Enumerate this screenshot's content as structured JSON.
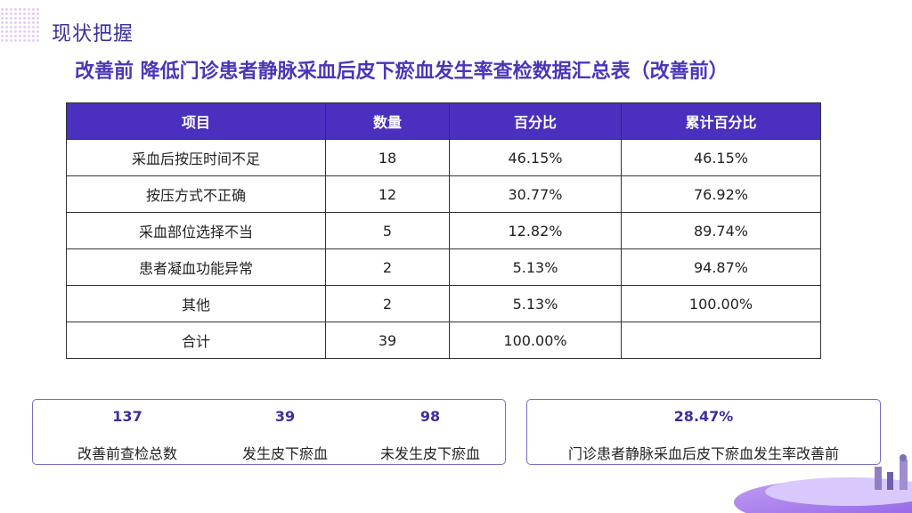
{
  "header": {
    "section_title": "现状把握",
    "main_title": "改善前 降低门诊患者静脉采血后皮下瘀血发生率查检数据汇总表（改善前）"
  },
  "table": {
    "columns": [
      "项目",
      "数量",
      "百分比",
      "累计百分比"
    ],
    "rows": [
      [
        "采血后按压时间不足",
        "18",
        "46.15%",
        "46.15%"
      ],
      [
        "按压方式不正确",
        "12",
        "30.77%",
        "76.92%"
      ],
      [
        "采血部位选择不当",
        "5",
        "12.82%",
        "89.74%"
      ],
      [
        "患者凝血功能异常",
        "2",
        "5.13%",
        "94.87%"
      ],
      [
        "其他",
        "2",
        "5.13%",
        "100.00%"
      ],
      [
        "合计",
        "39",
        "100.00%",
        ""
      ]
    ]
  },
  "summary": {
    "left": [
      {
        "value": "137",
        "label": "改善前查检总数"
      },
      {
        "value": "39",
        "label": "发生皮下瘀血"
      },
      {
        "value": "98",
        "label": "未发生皮下瘀血"
      }
    ],
    "right": {
      "value": "28.47%",
      "label": "门诊患者静脉采血后皮下瘀血发生率改善前"
    }
  },
  "colors": {
    "accent": "#4b2fbf",
    "title": "#4a36b8",
    "box_border": "#7b6cc8"
  }
}
